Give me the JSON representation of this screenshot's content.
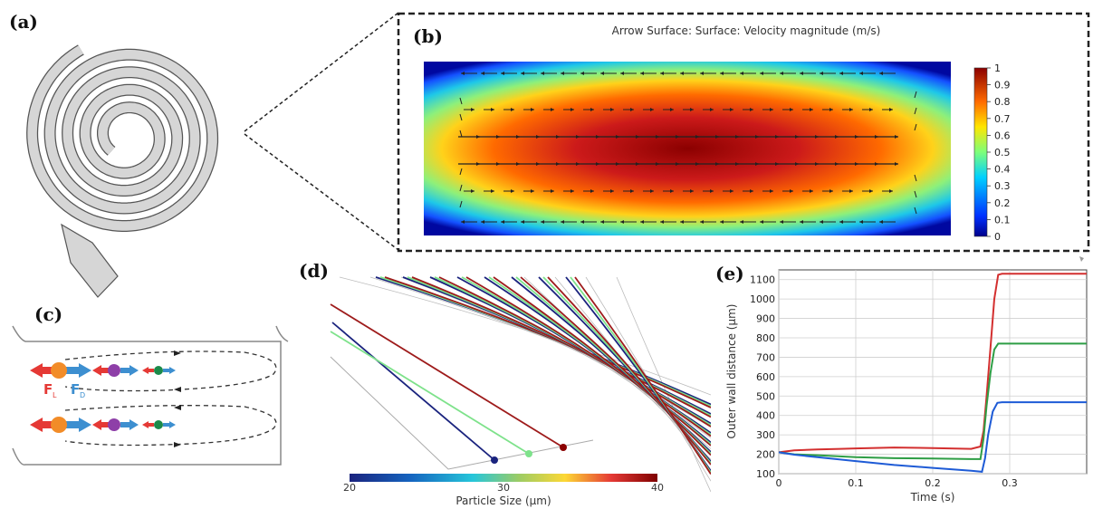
{
  "figure": {
    "panels": {
      "a": "(a)",
      "b": "(b)",
      "c": "(c)",
      "d": "(d)",
      "e": "(e)"
    }
  },
  "heatmap": {
    "title": "Arrow Surface:   Surface: Velocity magnitude (m/s)",
    "colorbar_ticks": [
      "1",
      "0.9",
      "0.8",
      "0.7",
      "0.6",
      "0.5",
      "0.4",
      "0.3",
      "0.2",
      "0.1",
      "0"
    ]
  },
  "forces": {
    "fl_label": "F",
    "fl_sub": "L",
    "fd_label": "F",
    "fd_sub": "D",
    "colors": {
      "fl": "#e53935",
      "fd": "#3d8fd0",
      "large": "#f28c28",
      "medium": "#8e3fa8",
      "small": "#1b8a4a"
    }
  },
  "trajectories": {
    "colorbar_min": "20",
    "colorbar_mid": "30",
    "colorbar_max": "40",
    "colorbar_label": "Particle Size (µm)",
    "particle_colors": [
      "#1a237e",
      "#7ee28b",
      "#9e1b1b"
    ]
  },
  "chart_data": {
    "type": "line",
    "title": "",
    "xlabel": "Time (s)",
    "ylabel": "Outer wall distance (µm)",
    "xlim": [
      0,
      0.4
    ],
    "ylim": [
      100,
      1150
    ],
    "xticks": [
      0,
      0.1,
      0.2,
      0.3
    ],
    "yticks": [
      100,
      200,
      300,
      400,
      500,
      600,
      700,
      800,
      900,
      1000,
      1100
    ],
    "grid": true,
    "series": [
      {
        "color": "#d32f2f",
        "x": [
          0,
          0.02,
          0.05,
          0.08,
          0.1,
          0.15,
          0.2,
          0.25,
          0.262,
          0.266,
          0.27,
          0.275,
          0.28,
          0.285,
          0.29,
          0.32,
          0.36,
          0.4
        ],
        "y": [
          210,
          220,
          225,
          228,
          230,
          235,
          232,
          228,
          240,
          320,
          500,
          750,
          1000,
          1125,
          1130,
          1130,
          1130,
          1130
        ]
      },
      {
        "color": "#2e9e45",
        "x": [
          0,
          0.02,
          0.05,
          0.1,
          0.15,
          0.2,
          0.25,
          0.262,
          0.266,
          0.27,
          0.275,
          0.28,
          0.285,
          0.29,
          0.32,
          0.36,
          0.4
        ],
        "y": [
          210,
          200,
          195,
          185,
          180,
          178,
          175,
          175,
          280,
          450,
          620,
          740,
          770,
          770,
          770,
          770,
          770
        ]
      },
      {
        "color": "#1e5bd6",
        "x": [
          0,
          0.02,
          0.05,
          0.1,
          0.15,
          0.2,
          0.25,
          0.264,
          0.268,
          0.272,
          0.278,
          0.284,
          0.29,
          0.32,
          0.36,
          0.4
        ],
        "y": [
          210,
          198,
          185,
          165,
          145,
          130,
          115,
          110,
          180,
          300,
          420,
          465,
          468,
          468,
          468,
          468
        ]
      }
    ]
  }
}
